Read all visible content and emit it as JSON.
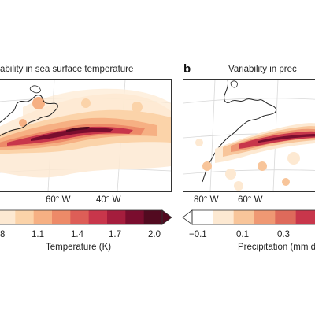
{
  "panel_a": {
    "title": "ability in sea surface temperature",
    "lon_labels": [
      "60° W",
      "40° W"
    ],
    "colorbar": {
      "tick_labels": [
        "8",
        "1.1",
        "1.4",
        "1.7",
        "2.0"
      ],
      "title": "Temperature (K)",
      "colors": [
        "#fde9d2",
        "#fbd3a9",
        "#f6b083",
        "#ed8a68",
        "#dd5e57",
        "#c8364b",
        "#a51d3d",
        "#7a0d2e",
        "#520a20"
      ]
    }
  },
  "panel_b": {
    "letter": "b",
    "title": "Variability in prec",
    "lon_labels": [
      "80° W",
      "60° W"
    ],
    "colorbar": {
      "tick_labels": [
        "−0.1",
        "0.1",
        "0.3"
      ],
      "title": "Precipitation (mm d",
      "colors": [
        "#ffffff",
        "#fde9d2",
        "#f8c59a",
        "#ef9873",
        "#de6a5b",
        "#c8364b"
      ]
    }
  }
}
